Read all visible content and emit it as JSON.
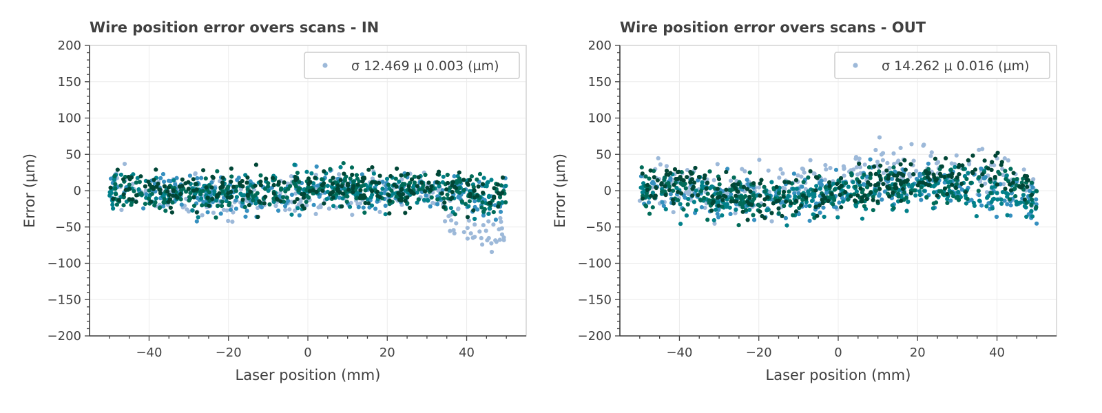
{
  "chart_data": [
    {
      "type": "scatter",
      "title": "Wire position error overs scans - IN",
      "xlabel": "Laser position (mm)",
      "ylabel": "Error (µm)",
      "xlim": [
        -55,
        55
      ],
      "ylim": [
        -200,
        200
      ],
      "xticks": [
        -40,
        -20,
        0,
        20,
        40
      ],
      "xtick_labels": [
        "−40",
        "−20",
        "0",
        "20",
        "40"
      ],
      "yticks": [
        200,
        150,
        100,
        50,
        0,
        -50,
        -100,
        -150,
        -200
      ],
      "ytick_labels": [
        "200",
        "150",
        "100",
        "50",
        "0",
        "−50",
        "−100",
        "−150",
        "−200"
      ],
      "grid": true,
      "legend": {
        "location": "top-right",
        "entries": [
          "σ 12.469   μ 0.003  (µm)"
        ]
      },
      "x_range": [
        -50,
        50
      ],
      "series": [
        {
          "color": "#9db9d9",
          "trend_x": [
            -50,
            -40,
            -30,
            -20,
            -10,
            0,
            10,
            20,
            30,
            35,
            40,
            45,
            50
          ],
          "trend_y": [
            5,
            -5,
            -10,
            -12,
            -10,
            -5,
            2,
            -3,
            2,
            -25,
            -45,
            -55,
            -62
          ],
          "spread": 16
        },
        {
          "color": "#3690c0",
          "trend_x": [
            -50,
            -40,
            -30,
            -20,
            -10,
            0,
            10,
            20,
            30,
            40,
            50
          ],
          "trend_y": [
            3,
            -3,
            -6,
            -5,
            -4,
            0,
            3,
            0,
            2,
            -8,
            -12
          ],
          "spread": 14
        },
        {
          "color": "#02818a",
          "trend_x": [
            -50,
            -40,
            -30,
            -20,
            -10,
            0,
            10,
            20,
            30,
            40,
            50
          ],
          "trend_y": [
            2,
            0,
            -4,
            -2,
            -2,
            2,
            3,
            0,
            4,
            -4,
            -10
          ],
          "spread": 13
        },
        {
          "color": "#016c59",
          "trend_x": [
            -50,
            -40,
            -30,
            -20,
            -10,
            0,
            10,
            20,
            30,
            40,
            50
          ],
          "trend_y": [
            0,
            -2,
            -4,
            -3,
            -1,
            0,
            2,
            -2,
            2,
            -6,
            -8
          ],
          "spread": 13
        },
        {
          "color": "#014636",
          "trend_x": [
            -50,
            -40,
            -30,
            -20,
            -10,
            0,
            10,
            20,
            30,
            40,
            50
          ],
          "trend_y": [
            5,
            2,
            0,
            1,
            0,
            2,
            4,
            1,
            5,
            0,
            -5
          ],
          "spread": 13
        }
      ]
    },
    {
      "type": "scatter",
      "title": "Wire position error overs scans - OUT",
      "xlabel": "Laser position (mm)",
      "ylabel": "Error (µm)",
      "xlim": [
        -55,
        55
      ],
      "ylim": [
        -200,
        200
      ],
      "xticks": [
        -40,
        -20,
        0,
        20,
        40
      ],
      "xtick_labels": [
        "−40",
        "−20",
        "0",
        "20",
        "40"
      ],
      "yticks": [
        200,
        150,
        100,
        50,
        0,
        -50,
        -100,
        -150,
        -200
      ],
      "ytick_labels": [
        "200",
        "150",
        "100",
        "50",
        "0",
        "−50",
        "−100",
        "−150",
        "−200"
      ],
      "grid": true,
      "legend": {
        "location": "top-right",
        "entries": [
          "σ 14.262   μ 0.016  (µm)"
        ]
      },
      "x_range": [
        -50,
        50
      ],
      "series": [
        {
          "color": "#9db9d9",
          "trend_x": [
            -50,
            -40,
            -30,
            -20,
            -10,
            0,
            10,
            20,
            30,
            40,
            50
          ],
          "trend_y": [
            5,
            8,
            0,
            -2,
            10,
            15,
            30,
            35,
            35,
            25,
            5
          ],
          "spread": 16
        },
        {
          "color": "#3690c0",
          "trend_x": [
            -50,
            -40,
            -30,
            -20,
            -10,
            0,
            10,
            20,
            30,
            40,
            50
          ],
          "trend_y": [
            0,
            -5,
            -10,
            -15,
            -10,
            -5,
            5,
            10,
            5,
            -5,
            -20
          ],
          "spread": 15
        },
        {
          "color": "#02818a",
          "trend_x": [
            -50,
            -40,
            -30,
            -20,
            -10,
            0,
            10,
            20,
            30,
            40,
            50
          ],
          "trend_y": [
            -2,
            -6,
            -10,
            -12,
            -12,
            -8,
            0,
            5,
            2,
            -2,
            -18
          ],
          "spread": 14
        },
        {
          "color": "#016c59",
          "trend_x": [
            -50,
            -40,
            -30,
            -20,
            -10,
            0,
            10,
            20,
            30,
            40,
            50
          ],
          "trend_y": [
            0,
            2,
            -5,
            -10,
            -8,
            -4,
            5,
            10,
            8,
            10,
            -10
          ],
          "spread": 14
        },
        {
          "color": "#014636",
          "trend_x": [
            -50,
            -40,
            -30,
            -20,
            -10,
            0,
            10,
            20,
            30,
            40,
            50
          ],
          "trend_y": [
            5,
            10,
            0,
            -8,
            -5,
            0,
            12,
            20,
            18,
            30,
            5
          ],
          "spread": 13
        }
      ]
    }
  ]
}
